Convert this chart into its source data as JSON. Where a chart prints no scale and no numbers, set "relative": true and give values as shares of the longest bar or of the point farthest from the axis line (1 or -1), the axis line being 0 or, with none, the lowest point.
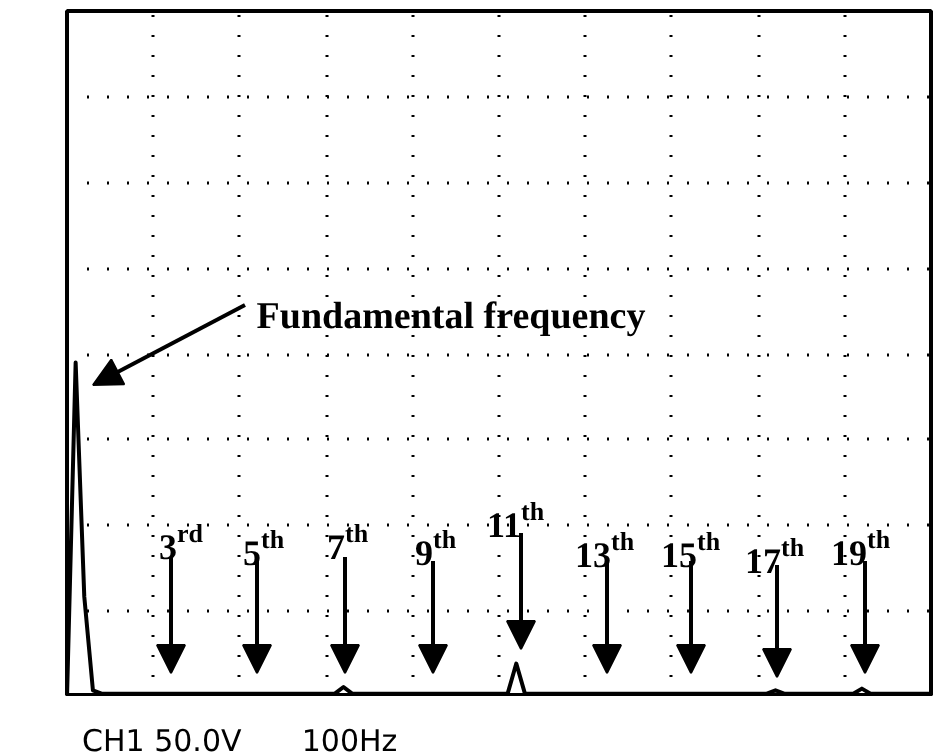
{
  "chart_data": {
    "type": "line",
    "relative": true,
    "grid": true,
    "tick_labels": false,
    "categories": [
      null,
      null,
      null,
      null,
      null,
      null,
      null,
      null,
      null,
      null,
      null,
      null,
      null,
      null,
      null,
      null,
      null,
      null,
      null,
      null,
      null,
      null,
      null,
      null,
      null,
      null,
      null,
      null,
      null,
      null,
      null,
      null,
      null,
      null,
      null,
      null,
      null,
      null,
      null,
      null,
      null,
      null,
      null,
      null,
      null,
      null,
      null,
      null,
      null,
      null,
      null,
      null,
      null,
      null,
      null,
      null,
      null,
      null,
      null,
      null,
      null,
      null,
      null,
      null,
      null,
      null,
      null,
      null,
      null,
      null,
      null,
      null,
      null,
      null,
      null,
      null,
      null,
      null,
      null,
      null,
      null,
      null,
      null,
      null,
      null,
      null,
      null,
      null,
      null,
      null,
      null,
      null,
      null,
      null,
      null,
      null,
      null,
      null,
      null,
      null,
      null
    ],
    "series": [
      {
        "color": "#000000",
        "values": [
          0,
          1.0,
          0.3,
          0.02,
          0.01,
          0.01,
          0.01,
          0.01,
          0.01,
          0.01,
          0.01,
          0.01,
          0.01,
          0.01,
          0.01,
          0.01,
          0.01,
          0.01,
          0.01,
          0.01,
          0.01,
          0.01,
          0.01,
          0.01,
          0.01,
          0.01,
          0.01,
          0.01,
          0.01,
          0.01,
          0.01,
          0.01,
          0.03,
          0.01,
          0.01,
          0.01,
          0.01,
          0.01,
          0.01,
          0.01,
          0.01,
          0.01,
          0.01,
          0.01,
          0.01,
          0.01,
          0.01,
          0.01,
          0.01,
          0.01,
          0.01,
          0.01,
          0.1,
          0.01,
          0.01,
          0.01,
          0.01,
          0.01,
          0.01,
          0.01,
          0.01,
          0.01,
          0.01,
          0.01,
          0.01,
          0.01,
          0.01,
          0.01,
          0.01,
          0.01,
          0.01,
          0.01,
          0.01,
          0.01,
          0.01,
          0.01,
          0.01,
          0.01,
          0.01,
          0.01,
          0.01,
          0.01,
          0.02,
          0.01,
          0.01,
          0.01,
          0.01,
          0.01,
          0.01,
          0.01,
          0.01,
          0.01,
          0.025,
          0.01,
          0.01,
          0.01,
          0.01,
          0.01,
          0.01,
          0.01,
          0.01
        ]
      }
    ],
    "annotations": [
      "Fundamental frequency",
      "3$^{rd}$",
      "5$^{th}$",
      "7$^{th}$",
      "9$^{th}$",
      "11$^{th}$",
      "13$^{th}$",
      "15$^{th}$",
      "17$^{th}$",
      "19$^{th}$",
      "CH1 50.0V",
      "100Hz"
    ]
  }
}
